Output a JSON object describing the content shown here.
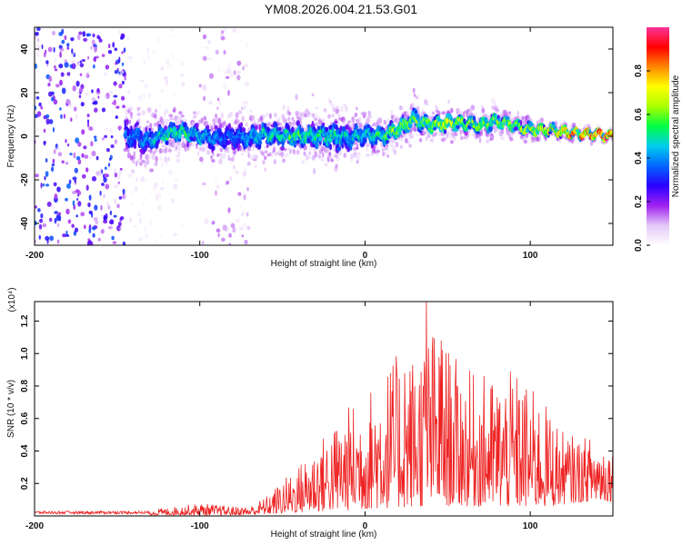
{
  "title": "YM08.2026.004.21.53.G01",
  "colors": {
    "series_line": "#ee2222",
    "spectrogram_main": "#4a0cf0",
    "spectrogram_faint": "#d9c4f7"
  },
  "chart_data": [
    {
      "type": "heatmap",
      "name": "spectrogram",
      "xlabel": "Height of straight line (km)",
      "ylabel": "Frequency (Hz)",
      "xlim": [
        -200,
        150
      ],
      "ylim": [
        -50,
        50
      ],
      "xticks": [
        -200,
        -100,
        0,
        100
      ],
      "xtick_labels": [
        "-200",
        "-100",
        "0",
        "100"
      ],
      "yticks": [
        -40,
        -20,
        0,
        20,
        40
      ],
      "ytick_labels": [
        "-40",
        "-20",
        "0",
        "20",
        "40"
      ],
      "colorbar": {
        "label": "Normalized spectral amplitude",
        "range": [
          0,
          1
        ],
        "ticks": [
          0,
          0.2,
          0.4,
          0.6,
          0.8
        ],
        "tick_labels": [
          "0.0",
          "0.2",
          "0.4",
          "0.6",
          "0.8"
        ],
        "stops": [
          "#ffffff",
          "#e4c8f8",
          "#a020f0",
          "#2a00ff",
          "#0066ff",
          "#00ccee",
          "#00ff44",
          "#aaff00",
          "#ffff00",
          "#ff8800",
          "#ff0000",
          "#ff3399"
        ]
      },
      "ridge": {
        "x": [
          -140,
          -130,
          -120,
          -110,
          -100,
          -90,
          -80,
          -70,
          -60,
          -50,
          -40,
          -30,
          -20,
          -10,
          0,
          10,
          20,
          30,
          40,
          50,
          60,
          70,
          80,
          90,
          100,
          110,
          120,
          130,
          140,
          150
        ],
        "freq": [
          0,
          -2,
          1,
          2,
          0,
          -1,
          0,
          -1,
          1,
          0,
          0,
          0,
          0,
          -1,
          1,
          0,
          3,
          8,
          5,
          6,
          6,
          5,
          7,
          5,
          3,
          3,
          2,
          1,
          1,
          0
        ],
        "peak_amplitude": [
          0.3,
          0.35,
          0.45,
          0.5,
          0.4,
          0.3,
          0.3,
          0.35,
          0.45,
          0.45,
          0.5,
          0.45,
          0.45,
          0.4,
          0.45,
          0.5,
          0.6,
          0.55,
          0.6,
          0.65,
          0.6,
          0.6,
          0.6,
          0.6,
          0.6,
          0.7,
          0.75,
          0.85,
          0.95,
          0.9
        ],
        "spread_hz": [
          12,
          10,
          8,
          7,
          8,
          9,
          10,
          10,
          9,
          9,
          9,
          10,
          12,
          10,
          8,
          7,
          7,
          7,
          6,
          6,
          5,
          5,
          5,
          4,
          4,
          3,
          3,
          2,
          2,
          2
        ]
      },
      "noise_regions": [
        {
          "x_range": [
            -200,
            -145
          ],
          "freq_range": [
            -50,
            50
          ],
          "amplitude": 0.3
        },
        {
          "x_range": [
            -145,
            -110
          ],
          "freq_range": [
            -50,
            50
          ],
          "amplitude": 0.08
        },
        {
          "x_range": [
            -100,
            -70
          ],
          "freq_range": [
            -50,
            50
          ],
          "amplitude": 0.12
        }
      ]
    },
    {
      "type": "line",
      "name": "snr",
      "xlabel": "Height of straight line (km)",
      "ylabel": "SNR (10 * v/v)",
      "scale_label": "(x10⁴)",
      "xlim": [
        -200,
        150
      ],
      "ylim": [
        0,
        1.32
      ],
      "xticks": [
        -200,
        -100,
        0,
        100
      ],
      "xtick_labels": [
        "-200",
        "-100",
        "0",
        "100"
      ],
      "yticks": [
        0.2,
        0.4,
        0.6,
        0.8,
        1.0,
        1.2
      ],
      "ytick_labels": [
        "0.2",
        "0.4",
        "0.6",
        "0.8",
        "1.0",
        "1.2"
      ],
      "series": [
        {
          "name": "SNR",
          "envelope_x": [
            -200,
            -150,
            -120,
            -100,
            -90,
            -80,
            -70,
            -60,
            -50,
            -40,
            -30,
            -20,
            -10,
            0,
            10,
            20,
            30,
            40,
            50,
            60,
            70,
            80,
            90,
            100,
            110,
            120,
            130,
            140,
            150
          ],
          "envelope_low": [
            0.01,
            0.01,
            0.02,
            0.02,
            0.02,
            0.02,
            0.02,
            0.04,
            0.06,
            0.08,
            0.1,
            0.12,
            0.14,
            0.16,
            0.18,
            0.2,
            0.22,
            0.24,
            0.24,
            0.24,
            0.22,
            0.22,
            0.2,
            0.2,
            0.22,
            0.28,
            0.34,
            0.36,
            0.36
          ],
          "envelope_high": [
            0.02,
            0.03,
            0.05,
            0.08,
            0.07,
            0.06,
            0.06,
            0.12,
            0.22,
            0.32,
            0.45,
            0.55,
            0.68,
            0.75,
            0.9,
            1.0,
            1.02,
            1.18,
            1.05,
            0.9,
            0.88,
            0.85,
            0.9,
            0.8,
            0.68,
            0.52,
            0.48,
            0.5,
            0.44
          ],
          "peaks": [
            {
              "x": 37,
              "y": 1.32
            },
            {
              "x": 24,
              "y": 0.88
            },
            {
              "x": 46,
              "y": 1.08
            }
          ]
        }
      ]
    }
  ]
}
